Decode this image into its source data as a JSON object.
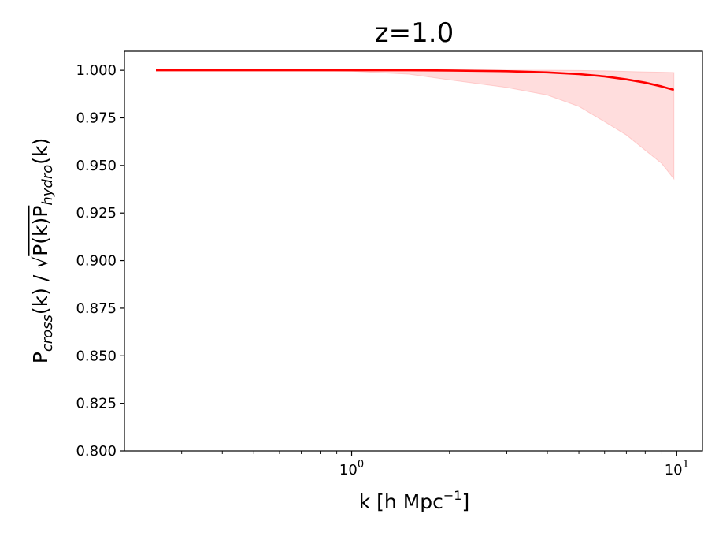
{
  "chart_data": {
    "type": "line",
    "title": "z=1.0",
    "xlabel": "k [h Mpc^-1]",
    "xlabel_parts": {
      "main": "k [h Mpc",
      "sup": "−1",
      "tail": "]"
    },
    "ylabel": "P_cross(k) / sqrt(P(k) P_hydro(k))",
    "x_scale": "log",
    "xlim": [
      0.2,
      12
    ],
    "ylim": [
      0.8,
      1.01
    ],
    "x_ticks": [
      {
        "value": 1,
        "base": "10",
        "exp": "0"
      },
      {
        "value": 10,
        "base": "10",
        "exp": "1"
      }
    ],
    "y_ticks": [
      {
        "value": 0.8,
        "label": "0.800"
      },
      {
        "value": 0.825,
        "label": "0.825"
      },
      {
        "value": 0.85,
        "label": "0.850"
      },
      {
        "value": 0.875,
        "label": "0.875"
      },
      {
        "value": 0.9,
        "label": "0.900"
      },
      {
        "value": 0.925,
        "label": "0.925"
      },
      {
        "value": 0.95,
        "label": "0.950"
      },
      {
        "value": 0.975,
        "label": "0.975"
      },
      {
        "value": 1.0,
        "label": "1.000"
      }
    ],
    "grid": false,
    "series": [
      {
        "color": "#ff0000",
        "x": [
          0.25,
          0.4,
          0.6,
          1.0,
          1.5,
          2.0,
          3.0,
          4.0,
          5.0,
          6.0,
          7.0,
          8.0,
          9.0,
          9.8
        ],
        "values": [
          1.0,
          1.0,
          1.0,
          1.0,
          1.0,
          0.9999,
          0.9995,
          0.9989,
          0.998,
          0.9968,
          0.9952,
          0.9935,
          0.9915,
          0.9897
        ]
      }
    ],
    "band": {
      "color": "#ffb3b3",
      "x": [
        0.25,
        0.4,
        0.6,
        1.0,
        1.5,
        2.0,
        3.0,
        4.0,
        5.0,
        6.0,
        7.0,
        8.0,
        9.0,
        9.8
      ],
      "upper": [
        1.0,
        1.0,
        1.0,
        1.0,
        1.0,
        1.0,
        1.0,
        1.0,
        0.9999,
        0.9997,
        0.9994,
        0.9991,
        0.999,
        0.9988
      ],
      "lower": [
        1.0,
        1.0,
        1.0,
        0.9995,
        0.998,
        0.995,
        0.991,
        0.987,
        0.981,
        0.973,
        0.966,
        0.958,
        0.951,
        0.943
      ]
    }
  }
}
